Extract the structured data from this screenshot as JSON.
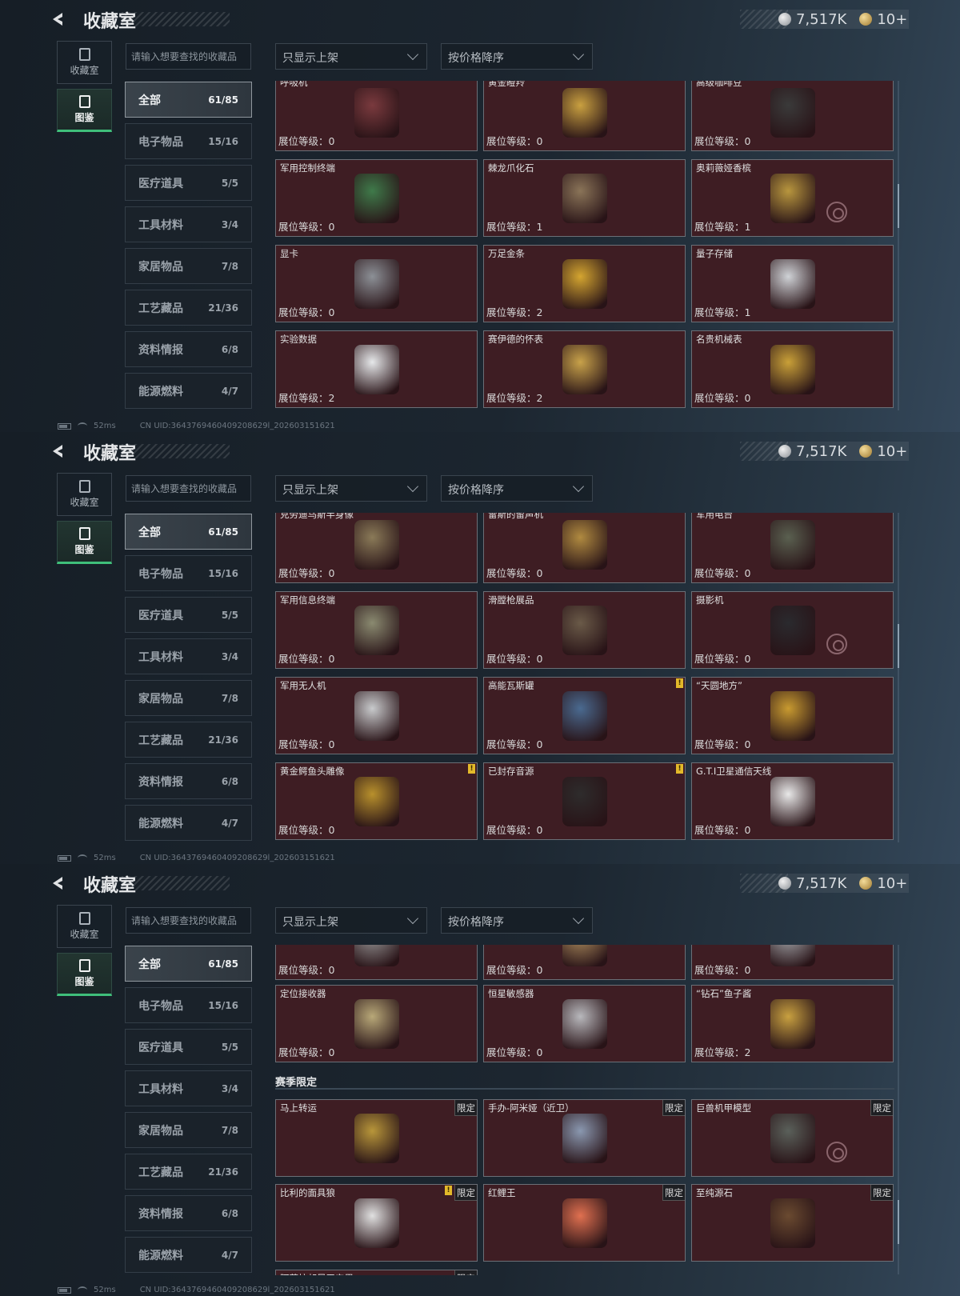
{
  "header": {
    "title": "收藏室",
    "currency_silver": "7,517K",
    "currency_gold": "10+"
  },
  "tabs": [
    {
      "label": "收藏室",
      "active": false
    },
    {
      "label": "图鉴",
      "active": true
    }
  ],
  "search": {
    "placeholder": "请输入想要查找的收藏品"
  },
  "filters": {
    "display_filter": "只显示上架",
    "sort": "按价格降序"
  },
  "categories": [
    {
      "label": "全部",
      "count": "61/85",
      "active": true
    },
    {
      "label": "电子物品",
      "count": "15/16"
    },
    {
      "label": "医疗道具",
      "count": "5/5"
    },
    {
      "label": "工具材料",
      "count": "3/4"
    },
    {
      "label": "家居物品",
      "count": "7/8"
    },
    {
      "label": "工艺藏品",
      "count": "21/36"
    },
    {
      "label": "资料情报",
      "count": "6/8"
    },
    {
      "label": "能源燃料",
      "count": "4/7"
    }
  ],
  "level_label": "展位等级：",
  "limited_label": "限定",
  "colors": {
    "card_bg": "#3e1d23",
    "accent_green": "#3fbf7a",
    "alert_yellow": "#e3b92a"
  },
  "status": {
    "ping": "52ms",
    "uid": "CN UID:3643769460409208629l_202603151621"
  },
  "panels": [
    {
      "rows": [
        [
          {
            "name": "呼吸机",
            "level": 0,
            "color": "#7a3a3e"
          },
          {
            "name": "黄金瞪羚",
            "level": 0,
            "color": "#c9a040"
          },
          {
            "name": "高级咖啡豆",
            "level": 0,
            "color": "#3a3a3a"
          }
        ],
        [
          {
            "name": "军用控制终端",
            "level": 0,
            "color": "#3f7a4a"
          },
          {
            "name": "棘龙爪化石",
            "level": 1,
            "color": "#8a7458"
          },
          {
            "name": "奥莉薇娅香槟",
            "level": 1,
            "color": "#b8963e",
            "target": true
          }
        ],
        [
          {
            "name": "显卡",
            "level": 0,
            "color": "#8c9096"
          },
          {
            "name": "万足金条",
            "level": 2,
            "color": "#d4a530"
          },
          {
            "name": "量子存储",
            "level": 1,
            "color": "#cfd2d6"
          }
        ],
        [
          {
            "name": "实验数据",
            "level": 2,
            "color": "#e6e8ea"
          },
          {
            "name": "赛伊德的怀表",
            "level": 2,
            "color": "#c8a24a"
          },
          {
            "name": "名贵机械表",
            "level": 0,
            "color": "#c9a038"
          }
        ]
      ]
    },
    {
      "rows": [
        [
          {
            "name": "克劳迪乌斯半身像",
            "level": 0,
            "color": "#8a7a58"
          },
          {
            "name": "雷斯的留声机",
            "level": 0,
            "color": "#b08a40"
          },
          {
            "name": "军用电台",
            "level": 0,
            "color": "#5a6050"
          }
        ],
        [
          {
            "name": "军用信息终端",
            "level": 0,
            "color": "#8a8a70"
          },
          {
            "name": "滑膛枪展品",
            "level": 0,
            "color": "#6a5a48"
          },
          {
            "name": "摄影机",
            "level": 0,
            "color": "#2a2a2e",
            "target": true
          }
        ],
        [
          {
            "name": "军用无人机",
            "level": 0,
            "color": "#c8cacc"
          },
          {
            "name": "高能瓦斯罐",
            "level": 0,
            "color": "#4a6a90",
            "alert": true
          },
          {
            "name": "“天圆地方”",
            "level": 0,
            "color": "#c89a30"
          }
        ],
        [
          {
            "name": "黄金鳄鱼头雕像",
            "level": 0,
            "color": "#b8902c",
            "alert": true
          },
          {
            "name": "已封存音源",
            "level": 0,
            "color": "#2e2c2c",
            "alert": true
          },
          {
            "name": "G.T.I卫星通信天线",
            "level": 0,
            "color": "#e8e8e8"
          }
        ]
      ]
    },
    {
      "rows": [
        [
          {
            "name": "",
            "level": 0,
            "color": "#9a9a9a"
          },
          {
            "name": "",
            "level": 0,
            "color": "#b09060"
          },
          {
            "name": "",
            "level": 0,
            "color": "#a8acb0"
          }
        ],
        [
          {
            "name": "定位接收器",
            "level": 0,
            "color": "#b8a878"
          },
          {
            "name": "恒星敏感器",
            "level": 0,
            "color": "#b8b8bc"
          },
          {
            "name": "“钻石”鱼子酱",
            "level": 2,
            "color": "#c8a040"
          }
        ]
      ],
      "section_title": "赛季限定",
      "section_rows": [
        [
          {
            "name": "马上转运",
            "limited": true,
            "color": "#b8963a"
          },
          {
            "name": "手办-阿米娅（近卫）",
            "limited": true,
            "color": "#8a98b0"
          },
          {
            "name": "巨兽机甲模型",
            "limited": true,
            "color": "#5a605a",
            "target": true
          }
        ],
        [
          {
            "name": "比利的面具狼",
            "limited": true,
            "alert": true,
            "color": "#e0e0e0"
          },
          {
            "name": "红鲤王",
            "limited": true,
            "color": "#e07050"
          },
          {
            "name": "至纯源石",
            "limited": true,
            "color": "#6a4a30"
          }
        ],
        [
          {
            "name": "阿萨拉邦足平安果",
            "limited": true,
            "color": "#3e1d23"
          }
        ]
      ]
    }
  ]
}
